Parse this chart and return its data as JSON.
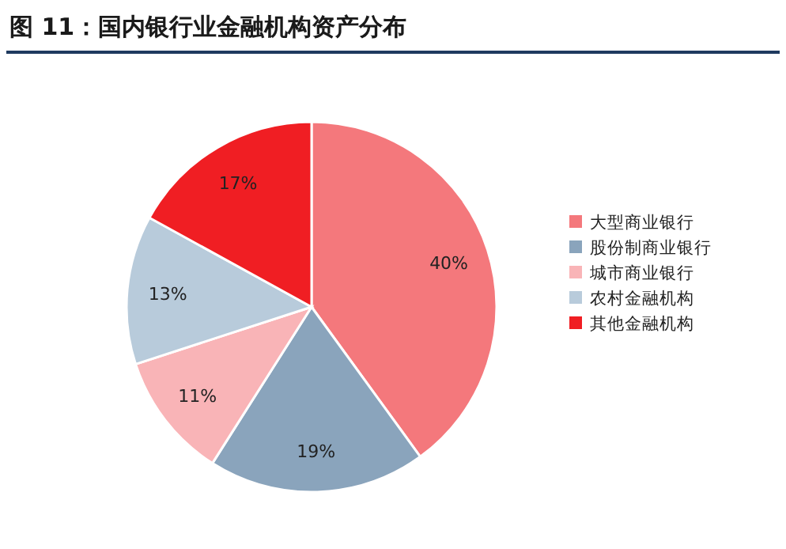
{
  "chart_data": {
    "type": "pie",
    "title": "图 11：国内银行业金融机构资产分布",
    "categories": [
      "大型商业银行",
      "股份制商业银行",
      "城市商业银行",
      "农村金融机构",
      "其他金融机构"
    ],
    "values": [
      40,
      19,
      11,
      13,
      17
    ],
    "value_labels": [
      "40%",
      "19%",
      "11%",
      "13%",
      "17%"
    ],
    "colors": [
      "#f4787c",
      "#8aa4bc",
      "#f9b4b7",
      "#b8cbdb",
      "#f01e23"
    ],
    "legend": "right"
  }
}
